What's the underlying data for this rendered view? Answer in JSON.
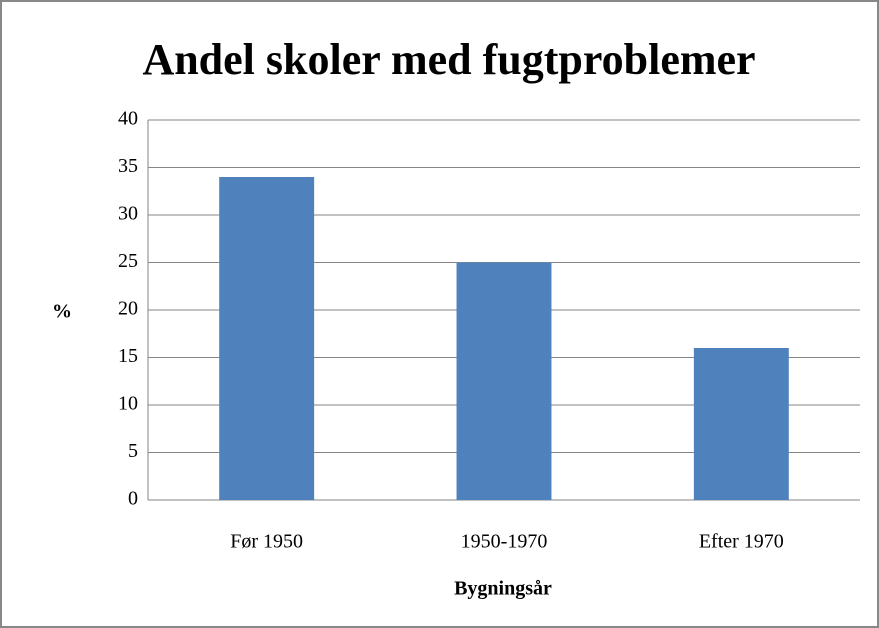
{
  "chart_data": {
    "type": "bar",
    "title": "Andel skoler med fugtproblemer",
    "y_label": "%",
    "x_label": "Bygningsår",
    "categories": [
      "Før 1950",
      "1950-1970",
      "Efter 1970"
    ],
    "values": [
      34,
      25,
      16
    ],
    "color": "#4f81bd",
    "ylim": [
      0,
      40
    ],
    "yticks": [
      0,
      5,
      10,
      15,
      20,
      25,
      30,
      35,
      40
    ],
    "grid": true
  }
}
